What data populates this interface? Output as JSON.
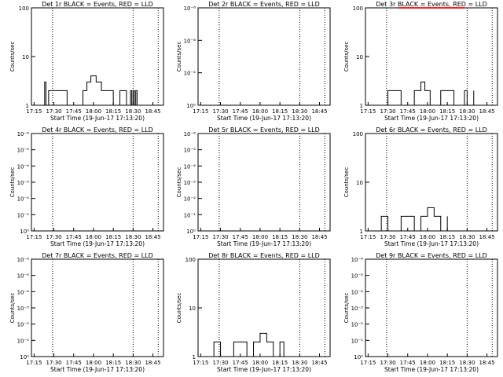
{
  "chart_data": [
    {
      "type": "line",
      "title": "Det 1r BLACK = Events, RED = LLD",
      "ylabel": "Counts/sec",
      "xlabel": "Start Time (19-Jun-17 17:13:20)",
      "xticks": [
        "17:15",
        "17:30",
        "17:45",
        "18:00",
        "18:15",
        "18:30",
        "18:45"
      ],
      "yscale": "log",
      "yticks": [
        "1",
        "10",
        "100"
      ],
      "ylim": [
        1,
        100
      ],
      "xlim": [
        "17:13",
        "18:53"
      ],
      "vlines": [
        "17:29",
        "18:30",
        "18:49"
      ],
      "series": [
        {
          "color": "#000000",
          "x": [
            "17:22",
            "17:23",
            "17:24",
            "17:26",
            "17:30",
            "17:40",
            "17:52",
            "17:55",
            "17:58",
            "18:02",
            "18:06",
            "18:15",
            "18:20",
            "18:25",
            "18:28",
            "18:29",
            "18:30",
            "18:31",
            "18:32",
            "18:33"
          ],
          "y": [
            1,
            3,
            1,
            2,
            2,
            1,
            2,
            3,
            4,
            3,
            2,
            1,
            2,
            1,
            2,
            1,
            2,
            1,
            2,
            1
          ]
        }
      ]
    },
    {
      "type": "line",
      "title": "Det 2r BLACK = Events, RED = LLD",
      "ylabel": "Counts/sec",
      "xlabel": "Start Time (19-Jun-17 17:13:20)",
      "xticks": [
        "17:15",
        "17:30",
        "17:45",
        "18:00",
        "18:15",
        "18:30",
        "18:45"
      ],
      "yscale": "log",
      "yticks": [
        "10⁰",
        "10⁻²",
        "10⁻⁴",
        "10⁻⁶"
      ],
      "ylim": [
        1,
        1e-06
      ],
      "xlim": [
        "17:13",
        "18:53"
      ],
      "vlines": [
        "17:29",
        "18:30",
        "18:49"
      ],
      "series": []
    },
    {
      "type": "line",
      "title": "Det 3r BLACK = Events, RED = LLD",
      "ylabel": "Counts/sec",
      "xlabel": "Start Time (19-Jun-17 17:13:20)",
      "xticks": [
        "17:15",
        "17:30",
        "17:45",
        "18:00",
        "18:15",
        "18:30",
        "18:45"
      ],
      "yscale": "log",
      "yticks": [
        "1",
        "10",
        "100"
      ],
      "ylim": [
        1,
        100
      ],
      "xlim": [
        "17:13",
        "18:53"
      ],
      "vlines": [
        "17:29",
        "18:30",
        "18:49"
      ],
      "series": [
        {
          "color": "#000000",
          "x": [
            "17:26",
            "17:30",
            "17:40",
            "17:50",
            "17:55",
            "17:58",
            "18:02",
            "18:10",
            "18:20",
            "18:28",
            "18:30",
            "18:35"
          ],
          "y": [
            1,
            2,
            1,
            2,
            3,
            2,
            1,
            2,
            1,
            2,
            1,
            2
          ]
        },
        {
          "color": "#ff0000",
          "x": [
            "17:38",
            "17:46",
            "18:15",
            "18:28"
          ],
          "y": [
            100,
            100,
            100,
            100
          ]
        }
      ]
    },
    {
      "type": "line",
      "title": "Det 4r BLACK = Events, RED = LLD",
      "ylabel": "Counts/sec",
      "xlabel": "Start Time (19-Jun-17 17:13:20)",
      "xticks": [
        "17:15",
        "17:30",
        "17:45",
        "18:00",
        "18:15",
        "18:30",
        "18:45"
      ],
      "yscale": "log",
      "yticks": [
        "10⁰",
        "10⁻¹",
        "10⁻²",
        "10⁻³",
        "10⁻⁴",
        "10⁻⁵",
        "10⁻⁶"
      ],
      "ylim": [
        1,
        1e-06
      ],
      "xlim": [
        "17:13",
        "18:53"
      ],
      "vlines": [
        "17:29",
        "18:30",
        "18:49"
      ],
      "series": []
    },
    {
      "type": "line",
      "title": "Det 5r BLACK = Events, RED = LLD",
      "ylabel": "Counts/sec",
      "xlabel": "Start Time (19-Jun-17 17:13:20)",
      "xticks": [
        "17:15",
        "17:30",
        "17:45",
        "18:00",
        "18:15",
        "18:30",
        "18:45"
      ],
      "yscale": "log",
      "yticks": [
        "10⁰",
        "10⁻¹",
        "10⁻²",
        "10⁻³",
        "10⁻⁴",
        "10⁻⁵",
        "10⁻⁶"
      ],
      "ylim": [
        1,
        1e-06
      ],
      "xlim": [
        "17:13",
        "18:53"
      ],
      "vlines": [
        "17:29",
        "18:30",
        "18:49"
      ],
      "series": []
    },
    {
      "type": "line",
      "title": "Det 6r BLACK = Events, RED = LLD",
      "ylabel": "Counts/sec",
      "xlabel": "Start Time (19-Jun-17 17:13:20)",
      "xticks": [
        "17:15",
        "17:30",
        "17:45",
        "18:00",
        "18:15",
        "18:30",
        "18:45"
      ],
      "yscale": "log",
      "yticks": [
        "1",
        "10",
        "100"
      ],
      "ylim": [
        1,
        100
      ],
      "xlim": [
        "17:13",
        "18:53"
      ],
      "vlines": [
        "17:29",
        "18:30",
        "18:49"
      ],
      "series": [
        {
          "color": "#000000",
          "x": [
            "17:20",
            "17:25",
            "17:30",
            "17:40",
            "17:50",
            "17:55",
            "18:00",
            "18:05",
            "18:10",
            "18:15"
          ],
          "y": [
            1,
            2,
            1,
            2,
            1,
            2,
            3,
            2,
            1,
            2
          ]
        }
      ]
    },
    {
      "type": "line",
      "title": "Det 7r BLACK = Events, RED = LLD",
      "ylabel": "Counts/sec",
      "xlabel": "Start Time (19-Jun-17 17:13:20)",
      "xticks": [
        "17:15",
        "17:30",
        "17:45",
        "18:00",
        "18:15",
        "18:30",
        "18:45"
      ],
      "yscale": "log",
      "yticks": [
        "10⁰",
        "10⁻¹",
        "10⁻²",
        "10⁻³",
        "10⁻⁴",
        "10⁻⁵",
        "10⁻⁶"
      ],
      "ylim": [
        1,
        1e-06
      ],
      "xlim": [
        "17:13",
        "18:53"
      ],
      "vlines": [
        "17:29",
        "18:30",
        "18:49"
      ],
      "series": []
    },
    {
      "type": "line",
      "title": "Det 8r BLACK = Events, RED = LLD",
      "ylabel": "Counts/sec",
      "xlabel": "Start Time (19-Jun-17 17:13:20)",
      "xticks": [
        "17:15",
        "17:30",
        "17:45",
        "18:00",
        "18:15",
        "18:30",
        "18:45"
      ],
      "yscale": "log",
      "yticks": [
        "1",
        "10",
        "100"
      ],
      "ylim": [
        1,
        100
      ],
      "xlim": [
        "17:13",
        "18:53"
      ],
      "vlines": [
        "17:29",
        "18:30",
        "18:49"
      ],
      "series": [
        {
          "color": "#000000",
          "x": [
            "17:18",
            "17:25",
            "17:30",
            "17:40",
            "17:50",
            "17:55",
            "18:00",
            "18:05",
            "18:10",
            "18:15",
            "18:18"
          ],
          "y": [
            1,
            2,
            1,
            2,
            1,
            2,
            3,
            2,
            1,
            2,
            1
          ]
        }
      ]
    },
    {
      "type": "line",
      "title": "Det 9r BLACK = Events, RED = LLD",
      "ylabel": "Counts/sec",
      "xlabel": "Start Time (19-Jun-17 17:13:20)",
      "xticks": [
        "17:15",
        "17:30",
        "17:45",
        "18:00",
        "18:15",
        "18:30",
        "18:45"
      ],
      "yscale": "log",
      "yticks": [
        "10⁰",
        "10⁻¹",
        "10⁻²",
        "10⁻³",
        "10⁻⁴",
        "10⁻⁵",
        "10⁻⁶"
      ],
      "ylim": [
        1,
        1e-06
      ],
      "xlim": [
        "17:13",
        "18:53"
      ],
      "vlines": [
        "17:29",
        "18:30",
        "18:49"
      ],
      "series": []
    }
  ]
}
